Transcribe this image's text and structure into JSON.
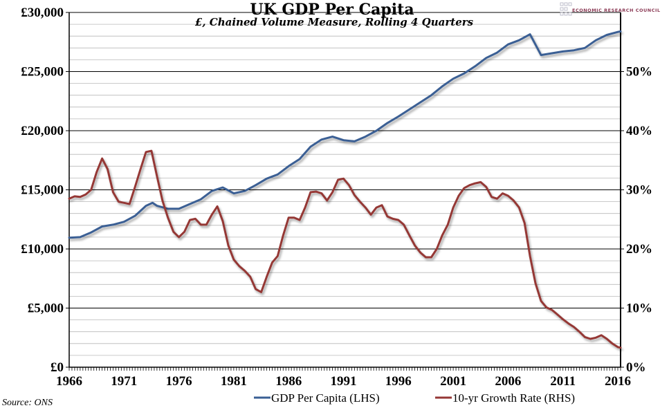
{
  "chart_data": {
    "type": "line",
    "title": "UK GDP Per Capita",
    "subtitle": "£, Chained Volume Measure, Rolling 4 Quarters",
    "source": "Source: ONS",
    "logo_text": "ECONOMIC RESEARCH COUNCIL",
    "x_ticks": [
      "1966",
      "1971",
      "1976",
      "1981",
      "1986",
      "1991",
      "1996",
      "2001",
      "2006",
      "2011",
      "2016"
    ],
    "xlim": [
      1966,
      2016.25
    ],
    "y_left": {
      "ylim": [
        0,
        30000
      ],
      "ticks": [
        "£0",
        "£5,000",
        "£10,000",
        "£15,000",
        "£20,000",
        "£25,000",
        "£30,000"
      ]
    },
    "y_right": {
      "ylim": [
        0,
        60
      ],
      "ticks": [
        "0%",
        "10%",
        "20%",
        "30%",
        "40%",
        "50%"
      ]
    },
    "grid": true,
    "legend_position": "bottom",
    "series": [
      {
        "name": "GDP Per Capita (LHS)",
        "axis": "left",
        "color": "#3a5f94",
        "x": [
          1966,
          1967,
          1968,
          1969,
          1970,
          1971,
          1972,
          1973,
          1973.6,
          1974,
          1975,
          1976,
          1977,
          1978,
          1979,
          1980,
          1981,
          1982,
          1983,
          1984,
          1985,
          1986,
          1987,
          1988,
          1989,
          1990,
          1991,
          1992,
          1993,
          1994,
          1995,
          1996,
          1997,
          1998,
          1999,
          2000,
          2001,
          2002,
          2003,
          2004,
          2005,
          2006,
          2007,
          2008,
          2009,
          2010,
          2011,
          2012,
          2013,
          2014,
          2015,
          2016,
          2016.25
        ],
        "y": [
          10950,
          11000,
          11400,
          11900,
          12050,
          12300,
          12800,
          13650,
          13900,
          13650,
          13400,
          13400,
          13800,
          14200,
          14900,
          15200,
          14700,
          14900,
          15400,
          15950,
          16300,
          17000,
          17600,
          18650,
          19250,
          19500,
          19200,
          19100,
          19500,
          20000,
          20650,
          21200,
          21800,
          22400,
          23000,
          23750,
          24400,
          24850,
          25450,
          26150,
          26600,
          27300,
          27650,
          28150,
          26400,
          26550,
          26700,
          26800,
          27000,
          27650,
          28100,
          28350,
          28400
        ]
      },
      {
        "name": "10-yr Growth Rate (RHS)",
        "axis": "right",
        "color": "#953735",
        "x": [
          1966,
          1966.5,
          1967,
          1967.5,
          1968,
          1968.5,
          1969,
          1969.5,
          1970,
          1970.5,
          1971,
          1971.5,
          1972,
          1972.5,
          1973,
          1973.5,
          1974,
          1974.5,
          1975,
          1975.5,
          1976,
          1976.5,
          1977,
          1977.5,
          1978,
          1978.5,
          1979,
          1979.5,
          1980,
          1980.5,
          1981,
          1981.5,
          1982,
          1982.5,
          1983,
          1983.5,
          1984,
          1984.5,
          1985,
          1985.5,
          1986,
          1986.5,
          1987,
          1987.5,
          1988,
          1988.5,
          1989,
          1989.5,
          1990,
          1990.5,
          1991,
          1991.5,
          1992,
          1992.5,
          1993,
          1993.5,
          1994,
          1994.5,
          1995,
          1995.5,
          1996,
          1996.5,
          1997,
          1997.5,
          1998,
          1998.5,
          1999,
          1999.5,
          2000,
          2000.5,
          2001,
          2001.5,
          2002,
          2002.5,
          2003,
          2003.5,
          2004,
          2004.5,
          2005,
          2005.5,
          2006,
          2006.5,
          2007,
          2007.5,
          2008,
          2008.5,
          2009,
          2009.5,
          2010,
          2010.5,
          2011,
          2011.5,
          2012,
          2012.5,
          2013,
          2013.5,
          2014,
          2014.5,
          2015,
          2015.5,
          2016,
          2016.25
        ],
        "y": [
          28.5,
          28.9,
          28.8,
          29.2,
          30.0,
          33.0,
          35.3,
          33.5,
          29.6,
          28.0,
          27.8,
          27.6,
          30.5,
          33.5,
          36.4,
          36.6,
          32.3,
          28.2,
          25.3,
          22.9,
          22.0,
          22.9,
          24.9,
          25.1,
          24.1,
          24.1,
          25.8,
          27.2,
          24.7,
          20.6,
          18.2,
          17.1,
          16.3,
          15.3,
          13.2,
          12.7,
          15.3,
          17.7,
          18.8,
          22.3,
          25.3,
          25.3,
          24.9,
          27.0,
          29.6,
          29.7,
          29.4,
          28.2,
          29.6,
          31.7,
          31.9,
          30.8,
          29.1,
          28.0,
          27.0,
          25.8,
          27.0,
          27.4,
          25.5,
          25.1,
          24.9,
          24.1,
          22.3,
          20.6,
          19.4,
          18.6,
          18.6,
          20.0,
          22.3,
          24.1,
          27.0,
          29.0,
          30.3,
          30.8,
          31.1,
          31.3,
          30.5,
          28.8,
          28.5,
          29.4,
          29.0,
          28.2,
          27.0,
          24.4,
          18.8,
          14.2,
          11.2,
          10.1,
          9.7,
          8.9,
          8.1,
          7.4,
          6.8,
          6.0,
          5.1,
          4.8,
          5.0,
          5.4,
          4.8,
          4.0,
          3.4,
          3.3
        ]
      }
    ]
  }
}
